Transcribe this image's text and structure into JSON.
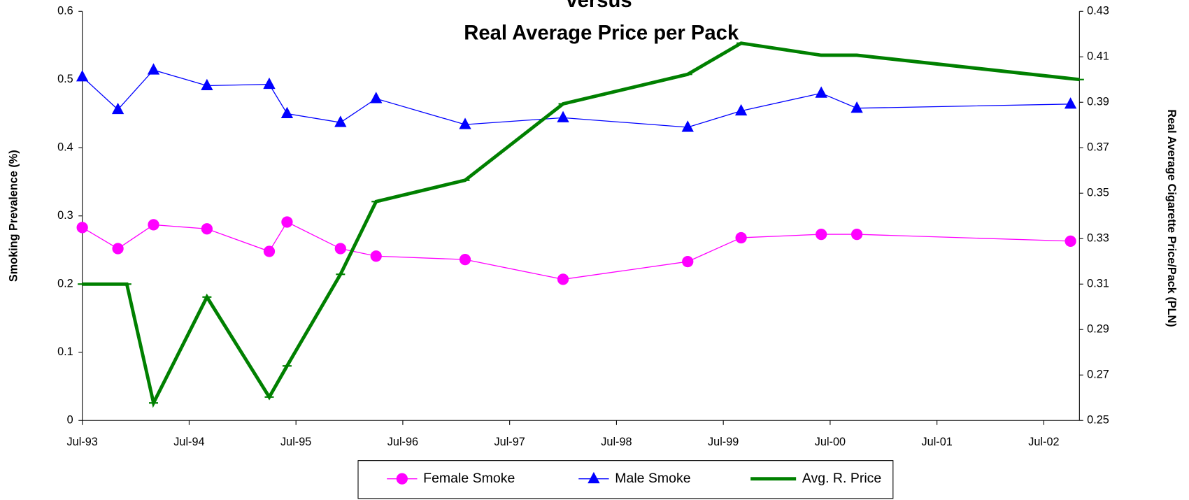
{
  "chart_data": {
    "type": "line",
    "title": [
      "versus",
      "Real Average Price per Pack"
    ],
    "y_label": "Smoking Prevalence (%)",
    "y2_label": "Real Average Cigarette Price/Pack (PLN)",
    "xlim": [
      "1993-07",
      "2002-11"
    ],
    "xticks": [
      {
        "value": "1993-07",
        "label": "Jul-93"
      },
      {
        "value": "1994-07",
        "label": "Jul-94"
      },
      {
        "value": "1995-07",
        "label": "Jul-95"
      },
      {
        "value": "1996-07",
        "label": "Jul-96"
      },
      {
        "value": "1997-07",
        "label": "Jul-97"
      },
      {
        "value": "1998-07",
        "label": "Jul-98"
      },
      {
        "value": "1999-07",
        "label": "Jul-99"
      },
      {
        "value": "2000-07",
        "label": "Jul-00"
      },
      {
        "value": "2001-07",
        "label": "Jul-01"
      },
      {
        "value": "2002-07",
        "label": "Jul-02"
      }
    ],
    "ylim": [
      0,
      0.6
    ],
    "yticks": [
      0,
      0.1,
      0.2,
      0.3,
      0.4,
      0.5,
      0.6
    ],
    "y2lim": [
      0.25,
      0.43
    ],
    "y2ticks": [
      0.25,
      0.27,
      0.29,
      0.31,
      0.33,
      0.35,
      0.37,
      0.39,
      0.41,
      0.43
    ],
    "legend": "bottom",
    "series": [
      {
        "name": "Female Smoke",
        "color": "#ff00ff",
        "marker": "circle",
        "width": 1.2,
        "x": [
          "1993-07",
          "1993-11",
          "1994-03",
          "1994-09",
          "1995-04",
          "1995-06",
          "1995-12",
          "1996-04",
          "1997-02",
          "1998-01",
          "1999-03",
          "1999-09",
          "2000-06",
          "2000-10",
          "2002-10"
        ],
        "values": [
          0.283,
          0.252,
          0.287,
          0.281,
          0.248,
          0.291,
          0.252,
          0.241,
          0.236,
          0.207,
          0.233,
          0.268,
          0.273,
          0.273,
          0.263
        ]
      },
      {
        "name": "Male Smoke",
        "color": "#0000ff",
        "marker": "triangle",
        "width": 1.2,
        "x": [
          "1993-07",
          "1993-11",
          "1994-03",
          "1994-09",
          "1995-04",
          "1995-06",
          "1995-12",
          "1996-04",
          "1997-02",
          "1998-01",
          "1999-03",
          "1999-09",
          "2000-06",
          "2000-10",
          "2002-10"
        ],
        "values": [
          0.504,
          0.456,
          0.514,
          0.491,
          0.493,
          0.45,
          0.437,
          0.472,
          0.434,
          0.444,
          0.43,
          0.454,
          0.48,
          0.458,
          0.464
        ]
      },
      {
        "name": "Avg. R. Price",
        "color": "#008000",
        "marker": "dash",
        "width": 4.5,
        "axis": "y2",
        "x": [
          "1993-07",
          "1993-12",
          "1994-03",
          "1994-09",
          "1995-04",
          "1995-06",
          "1995-12",
          "1996-04",
          "1997-02",
          "1998-01",
          "1999-03",
          "1999-09",
          "2000-06",
          "2000-10",
          "2002-11"
        ],
        "values": [
          0.31,
          0.31,
          0.2577,
          0.3043,
          0.2603,
          0.274,
          0.3143,
          0.3463,
          0.3557,
          0.3893,
          0.4023,
          0.416,
          0.4107,
          0.4107,
          0.4
        ]
      }
    ]
  }
}
